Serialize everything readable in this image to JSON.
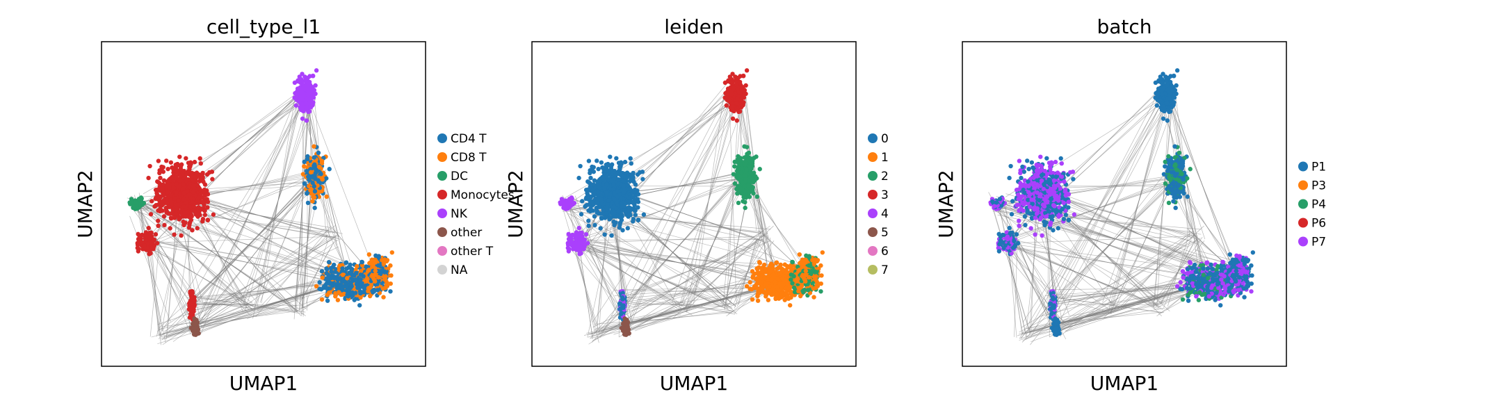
{
  "chart_data": [
    {
      "type": "scatter",
      "title": "cell_type_l1",
      "xlabel": "UMAP1",
      "ylabel": "UMAP2",
      "legend_position": "right",
      "legend": [
        {
          "label": "CD4 T",
          "color": "#1f77b4"
        },
        {
          "label": "CD8 T",
          "color": "#ff7f0e"
        },
        {
          "label": "DC",
          "color": "#279e68"
        },
        {
          "label": "Monocytes",
          "color": "#d62728"
        },
        {
          "label": "NK",
          "color": "#aa40fc"
        },
        {
          "label": "other",
          "color": "#8c564b"
        },
        {
          "label": "other T",
          "color": "#e377c2"
        },
        {
          "label": "NA",
          "color": "#d3d3d3"
        }
      ]
    },
    {
      "type": "scatter",
      "title": "leiden",
      "xlabel": "UMAP1",
      "ylabel": "UMAP2",
      "legend_position": "right",
      "legend": [
        {
          "label": "0",
          "color": "#1f77b4"
        },
        {
          "label": "1",
          "color": "#ff7f0e"
        },
        {
          "label": "2",
          "color": "#279e68"
        },
        {
          "label": "3",
          "color": "#d62728"
        },
        {
          "label": "4",
          "color": "#aa40fc"
        },
        {
          "label": "5",
          "color": "#8c564b"
        },
        {
          "label": "6",
          "color": "#e377c2"
        },
        {
          "label": "7",
          "color": "#b5bd61"
        }
      ]
    },
    {
      "type": "scatter",
      "title": "batch",
      "xlabel": "UMAP1",
      "ylabel": "UMAP2",
      "legend_position": "right",
      "legend": [
        {
          "label": "P1",
          "color": "#1f77b4"
        },
        {
          "label": "P3",
          "color": "#ff7f0e"
        },
        {
          "label": "P4",
          "color": "#279e68"
        },
        {
          "label": "P6",
          "color": "#d62728"
        },
        {
          "label": "P7",
          "color": "#aa40fc"
        }
      ]
    }
  ]
}
